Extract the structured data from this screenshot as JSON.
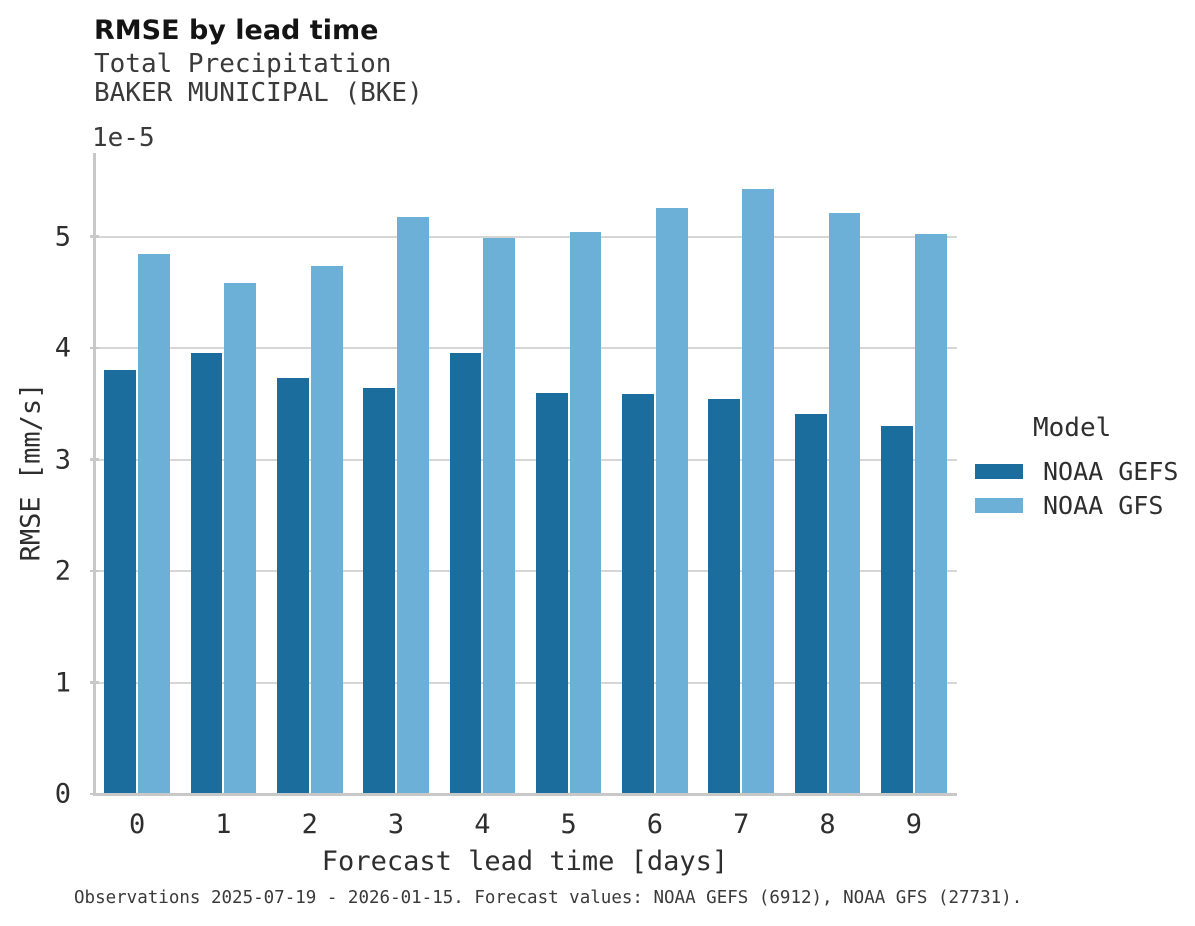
{
  "chart_data": {
    "type": "bar",
    "title": "RMSE by lead time",
    "subtitle_variable": "Total Precipitation",
    "subtitle_station": "BAKER MUNICIPAL (BKE)",
    "xlabel": "Forecast lead time [days]",
    "ylabel": "RMSE [mm/s]",
    "y_scale_offset_label": "1e-5",
    "y_unit_scale": 1e-05,
    "categories": [
      "0",
      "1",
      "2",
      "3",
      "4",
      "5",
      "6",
      "7",
      "8",
      "9"
    ],
    "yticks": [
      "0",
      "1",
      "2",
      "3",
      "4",
      "5"
    ],
    "ylim_in_1e5_units": [
      0,
      5.75
    ],
    "grid": "horizontal",
    "legend": {
      "title": "Model",
      "position": "right"
    },
    "series": [
      {
        "name": "NOAA GEFS",
        "color": "#1b6d9e",
        "values_in_1e5_units": [
          3.8,
          3.96,
          3.73,
          3.64,
          3.96,
          3.6,
          3.59,
          3.54,
          3.41,
          3.3
        ]
      },
      {
        "name": "NOAA GFS",
        "color": "#6cb0d8",
        "values_in_1e5_units": [
          4.84,
          4.58,
          4.74,
          5.18,
          4.99,
          5.04,
          5.26,
          5.43,
          5.21,
          5.02
        ]
      }
    ]
  },
  "footer": {
    "note": "Observations 2025-07-19 - 2026-01-15. Forecast values: NOAA GEFS (6912), NOAA GFS (27731)."
  },
  "colors": {
    "series_dark": "#1b6d9e",
    "series_light": "#6cb0d8",
    "gridline": "#d6d6d6",
    "spine": "#c8c8c8",
    "title_text": "#141414",
    "tick_text": "#2e2e2e",
    "subtitle_text": "#3a3a3a",
    "background": "#ffffff"
  }
}
